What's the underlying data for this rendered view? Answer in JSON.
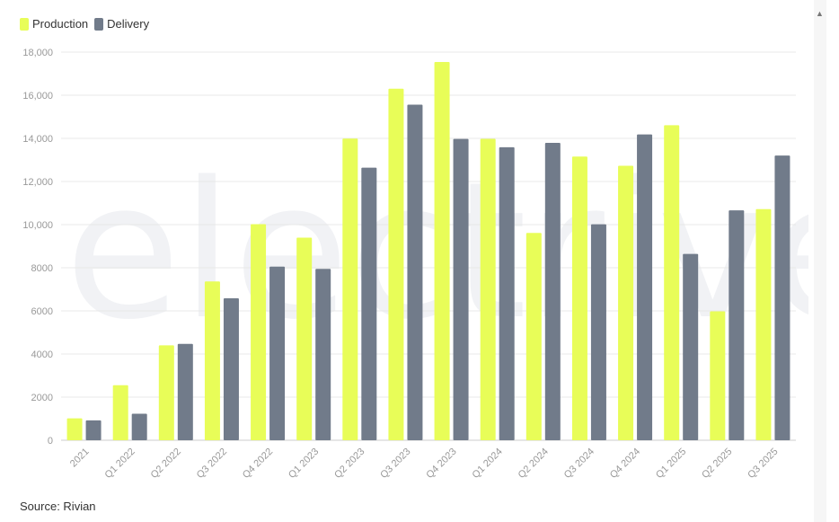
{
  "legend": {
    "production_label": "Production",
    "delivery_label": "Delivery"
  },
  "source": "Source: Rivian",
  "watermark": "electrive",
  "colors": {
    "production": "#e8fd58",
    "delivery": "#717b8a",
    "grid": "#e8e8e8",
    "axis_text": "#999999"
  },
  "chart_data": {
    "type": "bar",
    "categories": [
      "2021",
      "Q1 2022",
      "Q2 2022",
      "Q3 2022",
      "Q4 2022",
      "Q1 2023",
      "Q2 2023",
      "Q3 2023",
      "Q4 2023",
      "Q1 2024",
      "Q2 2024",
      "Q3 2024",
      "Q4 2024",
      "Q1 2025",
      "Q2 2025",
      "Q3 2025"
    ],
    "series": [
      {
        "name": "Production",
        "values": [
          1015,
          2553,
          4401,
          7363,
          10020,
          9395,
          13992,
          16304,
          17541,
          13980,
          9612,
          13157,
          12727,
          14611,
          5979,
          10720
        ]
      },
      {
        "name": "Delivery",
        "values": [
          920,
          1227,
          4467,
          6584,
          8054,
          7946,
          12640,
          15564,
          13972,
          13588,
          13790,
          10018,
          14183,
          8640,
          10661,
          13201
        ]
      }
    ],
    "ylim": [
      0,
      18000
    ],
    "yticks": [
      0,
      2000,
      4000,
      6000,
      8000,
      10000,
      12000,
      14000,
      16000,
      18000
    ],
    "ytick_labels": [
      "0",
      "2000",
      "4000",
      "6000",
      "8000",
      "10,000",
      "12,000",
      "14,000",
      "16,000",
      "18,000"
    ],
    "grid": true,
    "legend_position": "top-left"
  }
}
